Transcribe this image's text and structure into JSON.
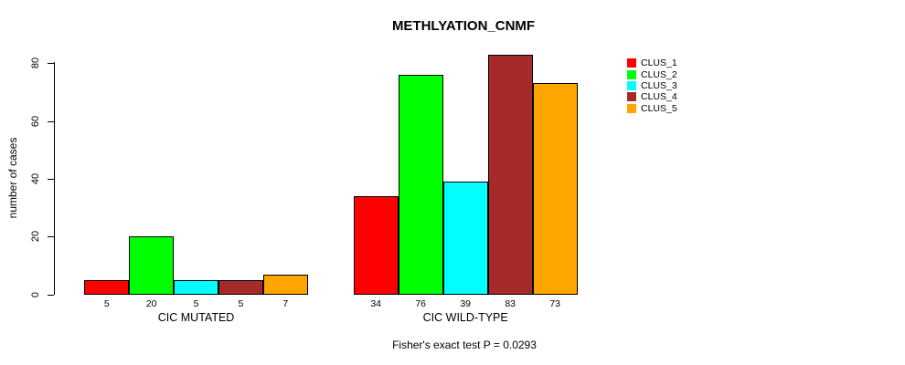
{
  "chart_data": {
    "type": "bar",
    "title": "METHLYATION_CNMF",
    "ylabel": "number of cases",
    "xlabel": "",
    "annotation": "Fisher's exact test P = 0.0293",
    "categories": [
      "CIC MUTATED",
      "CIC WILD-TYPE"
    ],
    "series": [
      {
        "name": "CLUS_1",
        "color": "#ff0000",
        "values": [
          5,
          34
        ]
      },
      {
        "name": "CLUS_2",
        "color": "#00ff00",
        "values": [
          20,
          76
        ]
      },
      {
        "name": "CLUS_3",
        "color": "#00ffff",
        "values": [
          5,
          39
        ]
      },
      {
        "name": "CLUS_4",
        "color": "#a52a2a",
        "values": [
          5,
          83
        ]
      },
      {
        "name": "CLUS_5",
        "color": "#ffa500",
        "values": [
          7,
          73
        ]
      }
    ],
    "yticks": [
      0,
      20,
      40,
      60,
      80
    ],
    "ylim": [
      0,
      87
    ],
    "grid": false,
    "legend_position": "top-right",
    "bar_value_labels_shown": true,
    "axis_color": "#000000",
    "background_color": "#ffffff"
  }
}
